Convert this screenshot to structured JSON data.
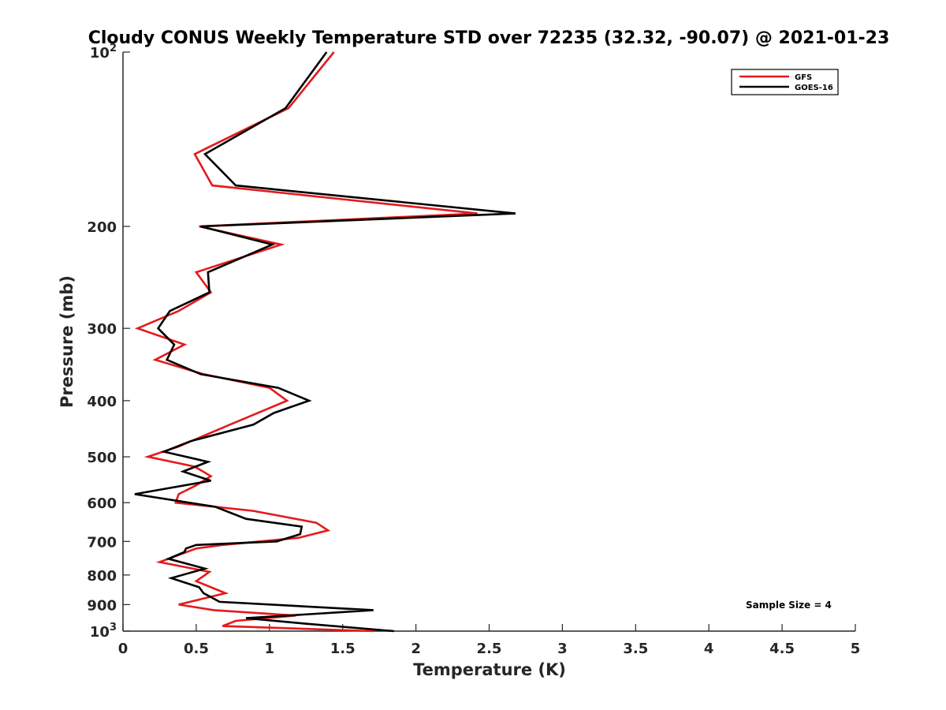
{
  "chart_data": {
    "type": "line",
    "title": "Cloudy CONUS Weekly Temperature STD over 72235 (32.32, -90.07) @ 2021-01-23",
    "xlabel": "Temperature (K)",
    "ylabel": "Pressure (mb)",
    "xlim": [
      0,
      5
    ],
    "ylim": [
      100,
      1000
    ],
    "yscale": "log",
    "yaxis_reversed": true,
    "grid": false,
    "legend_position": "top-right",
    "x_ticks": [
      0,
      0.5,
      1,
      1.5,
      2,
      2.5,
      3,
      3.5,
      4,
      4.5,
      5
    ],
    "x_tick_labels": [
      "0",
      "0.5",
      "1",
      "1.5",
      "2",
      "2.5",
      "3",
      "3.5",
      "4",
      "4.5",
      "5"
    ],
    "y_ticks": [
      100,
      200,
      300,
      400,
      500,
      600,
      700,
      800,
      900,
      1000
    ],
    "y_tick_labels": [
      {
        "base": "10",
        "exp": "2"
      },
      {
        "base": "200",
        "exp": ""
      },
      {
        "base": "300",
        "exp": ""
      },
      {
        "base": "400",
        "exp": ""
      },
      {
        "base": "500",
        "exp": ""
      },
      {
        "base": "600",
        "exp": ""
      },
      {
        "base": "700",
        "exp": ""
      },
      {
        "base": "800",
        "exp": ""
      },
      {
        "base": "900",
        "exp": ""
      },
      {
        "base": "10",
        "exp": "3"
      }
    ],
    "series": [
      {
        "name": "GFS",
        "color": "#e41a1c",
        "points": [
          [
            1.44,
            100
          ],
          [
            1.13,
            125
          ],
          [
            0.49,
            150
          ],
          [
            0.61,
            170
          ],
          [
            2.42,
            190
          ],
          [
            0.52,
            200
          ],
          [
            1.08,
            215
          ],
          [
            0.5,
            240
          ],
          [
            0.6,
            260
          ],
          [
            0.38,
            280
          ],
          [
            0.1,
            300
          ],
          [
            0.42,
            320
          ],
          [
            0.22,
            340
          ],
          [
            0.55,
            360
          ],
          [
            1.0,
            380
          ],
          [
            1.12,
            400
          ],
          [
            0.73,
            440
          ],
          [
            0.38,
            480
          ],
          [
            0.17,
            500
          ],
          [
            0.49,
            520
          ],
          [
            0.6,
            540
          ],
          [
            0.5,
            560
          ],
          [
            0.38,
            580
          ],
          [
            0.36,
            600
          ],
          [
            0.89,
            620
          ],
          [
            1.32,
            650
          ],
          [
            1.4,
            670
          ],
          [
            1.2,
            690
          ],
          [
            0.68,
            710
          ],
          [
            0.5,
            720
          ],
          [
            0.25,
            760
          ],
          [
            0.59,
            790
          ],
          [
            0.5,
            820
          ],
          [
            0.7,
            860
          ],
          [
            0.38,
            900
          ],
          [
            0.62,
            920
          ],
          [
            1.18,
            940
          ],
          [
            0.77,
            960
          ],
          [
            0.68,
            980
          ],
          [
            1.71,
            1000
          ]
        ]
      },
      {
        "name": "GOES-16",
        "color": "#000000",
        "points": [
          [
            1.39,
            100
          ],
          [
            1.11,
            125
          ],
          [
            0.56,
            150
          ],
          [
            0.77,
            170
          ],
          [
            2.68,
            190
          ],
          [
            0.53,
            200
          ],
          [
            1.02,
            215
          ],
          [
            0.58,
            240
          ],
          [
            0.59,
            260
          ],
          [
            0.32,
            280
          ],
          [
            0.24,
            300
          ],
          [
            0.35,
            320
          ],
          [
            0.3,
            340
          ],
          [
            0.53,
            360
          ],
          [
            1.06,
            380
          ],
          [
            1.27,
            400
          ],
          [
            1.03,
            420
          ],
          [
            0.89,
            440
          ],
          [
            0.46,
            470
          ],
          [
            0.28,
            490
          ],
          [
            0.58,
            510
          ],
          [
            0.41,
            530
          ],
          [
            0.6,
            550
          ],
          [
            0.08,
            580
          ],
          [
            0.63,
            610
          ],
          [
            0.84,
            640
          ],
          [
            1.22,
            660
          ],
          [
            1.21,
            680
          ],
          [
            1.05,
            700
          ],
          [
            0.5,
            710
          ],
          [
            0.43,
            720
          ],
          [
            0.42,
            730
          ],
          [
            0.31,
            750
          ],
          [
            0.56,
            780
          ],
          [
            0.33,
            810
          ],
          [
            0.52,
            840
          ],
          [
            0.55,
            860
          ],
          [
            0.66,
            890
          ],
          [
            1.71,
            920
          ],
          [
            0.84,
            950
          ],
          [
            1.23,
            970
          ],
          [
            1.85,
            1000
          ]
        ]
      }
    ],
    "legend": [
      "GFS",
      "GOES-16"
    ],
    "annotation": "Sample Size = 4"
  }
}
